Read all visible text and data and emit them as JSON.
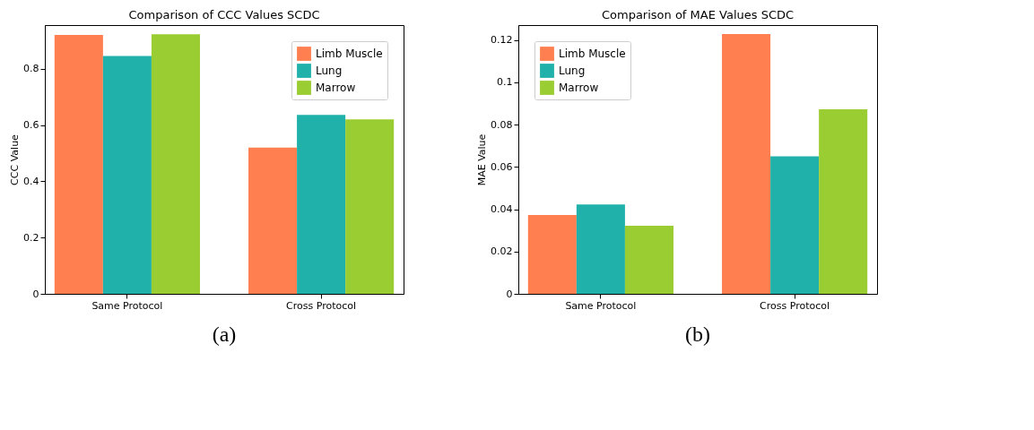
{
  "chart_data": [
    {
      "type": "bar",
      "title": "Comparison of CCC Values SCDC",
      "ylabel": "CCC Value",
      "categories": [
        "Same Protocol",
        "Cross Protocol"
      ],
      "series": [
        {
          "name": "Limb Muscle",
          "color": "#ff7f50",
          "values": [
            0.92,
            0.52
          ]
        },
        {
          "name": "Lung",
          "color": "#20b2aa",
          "values": [
            0.845,
            0.636
          ]
        },
        {
          "name": "Marrow",
          "color": "#9acd32",
          "values": [
            0.922,
            0.62
          ]
        }
      ],
      "ylim": [
        0,
        0.955
      ],
      "yticks": [
        0,
        0.2,
        0.4,
        0.6,
        0.8
      ],
      "legend": "top right",
      "grid": false,
      "annotations": [
        "(a)"
      ]
    },
    {
      "type": "bar",
      "title": "Comparison of MAE Values SCDC",
      "ylabel": "MAE Value",
      "categories": [
        "Same Protocol",
        "Cross Protocol"
      ],
      "series": [
        {
          "name": "Limb Muscle",
          "color": "#ff7f50",
          "values": [
            0.0373,
            0.1228
          ]
        },
        {
          "name": "Lung",
          "color": "#20b2aa",
          "values": [
            0.0422,
            0.065
          ]
        },
        {
          "name": "Marrow",
          "color": "#9acd32",
          "values": [
            0.0322,
            0.0872
          ]
        }
      ],
      "ylim": [
        0,
        0.127
      ],
      "yticks": [
        0,
        0.02,
        0.04,
        0.06,
        0.08,
        0.1,
        0.12
      ],
      "legend": "top left",
      "grid": false,
      "annotations": [
        "(b)"
      ]
    }
  ]
}
